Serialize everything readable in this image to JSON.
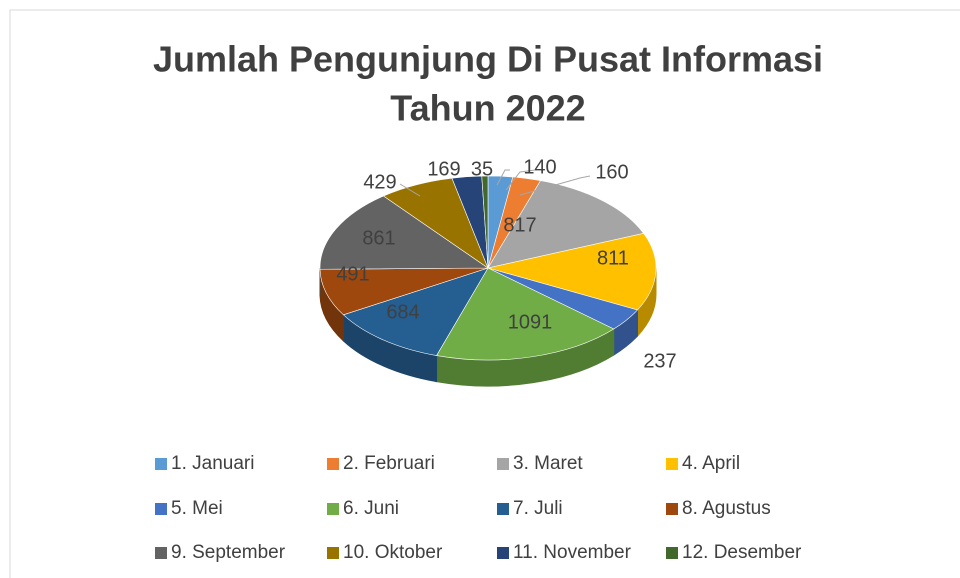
{
  "chart_data": {
    "type": "pie",
    "title": "Jumlah Pengunjung Di Pusat Informasi",
    "subtitle": "Tahun 2022",
    "categories": [
      "1. Januari",
      "2. Februari",
      "3. Maret",
      "4. April",
      "5. Mei",
      "6. Juni",
      "7. Juli",
      "8. Agustus",
      "9. September",
      "10. Oktober",
      "11. November",
      "12. Desember"
    ],
    "values": [
      140,
      160,
      817,
      811,
      237,
      1091,
      684,
      491,
      861,
      429,
      169,
      35
    ],
    "colors": [
      "#5b9bd5",
      "#ed7d31",
      "#a5a5a5",
      "#ffc000",
      "#4472c4",
      "#70ad47",
      "#255e91",
      "#9e480e",
      "#636363",
      "#997300",
      "#264478",
      "#43682b"
    ],
    "legend": "bottom"
  }
}
